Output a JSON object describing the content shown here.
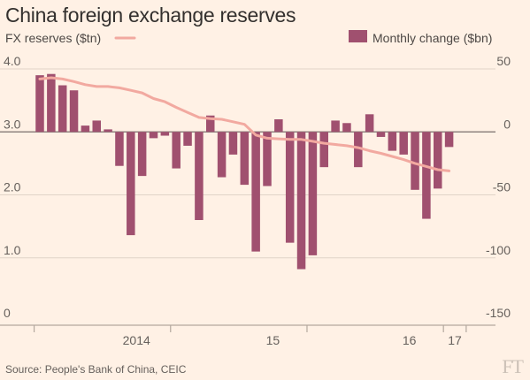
{
  "chart_data": {
    "type": "bar+line",
    "title": "China foreign exchange reserves",
    "source": "Source: People's Bank of China, CEIC",
    "logo": "FT",
    "line_series": {
      "name": "FX reserves ($tn)",
      "color": "#f2a9a0",
      "axis": "left",
      "ylim": [
        0,
        4.0
      ],
      "ticks": [
        "4.0",
        "3.0",
        "2.0",
        "1.0",
        "0"
      ],
      "tick_values": [
        4,
        3,
        2,
        1,
        0
      ]
    },
    "bar_series": {
      "name": "Monthly change ($bn)",
      "color": "#a0506f",
      "axis": "right",
      "ylim": [
        -150,
        50
      ],
      "ticks": [
        "50",
        "0",
        "-50",
        "-100",
        "-150"
      ],
      "tick_values": [
        50,
        0,
        -50,
        -100,
        -150
      ]
    },
    "x_ticks": [
      {
        "label": "2014",
        "month": 8.5
      },
      {
        "label": "15",
        "month": 20.5
      },
      {
        "label": "16",
        "month": 32.5
      },
      {
        "label": "17",
        "month": 36.5
      }
    ],
    "x_boundaries": [
      -0.5,
      11.5,
      23.5,
      35.5
    ],
    "months": [
      "2013-07",
      "2013-08",
      "2013-09",
      "2013-10",
      "2013-11",
      "2013-12",
      "2014-01",
      "2014-02",
      "2014-03",
      "2014-04",
      "2014-05",
      "2014-06",
      "2014-07",
      "2014-08",
      "2014-09",
      "2014-10",
      "2014-11",
      "2014-12",
      "2015-01",
      "2015-02",
      "2015-03",
      "2015-04",
      "2015-05",
      "2015-06",
      "2015-07",
      "2015-08",
      "2015-09",
      "2015-10",
      "2015-11",
      "2015-12",
      "2016-01",
      "2016-02",
      "2016-03",
      "2016-04",
      "2016-05",
      "2016-06",
      "2016-07",
      "2016-08",
      "2016-09",
      "2016-10",
      "2016-11",
      "2016-12",
      "2017-01"
    ],
    "reserves": [
      3.5,
      3.55,
      3.66,
      3.74,
      3.8,
      3.82,
      3.84,
      3.86,
      3.84,
      3.8,
      3.75,
      3.72,
      3.72,
      3.7,
      3.66,
      3.62,
      3.53,
      3.48,
      3.39,
      3.31,
      3.23,
      3.21,
      3.2,
      3.16,
      3.12,
      2.95,
      2.9,
      2.89,
      2.88,
      2.88,
      2.85,
      2.82,
      2.8,
      2.78,
      2.75,
      2.7,
      2.66,
      2.61,
      2.56,
      2.5,
      2.45,
      2.4,
      2.38
    ],
    "changes": [
      45,
      46,
      37,
      33,
      5,
      9,
      2,
      -27,
      -82,
      -35,
      -5,
      -3,
      -29,
      -11,
      -70,
      13,
      -36,
      -18,
      -42,
      -95,
      -43,
      10,
      -88,
      -109,
      -98,
      -28,
      9,
      7,
      -28,
      14,
      -4,
      -15,
      -18,
      -46,
      -69,
      -45,
      -12
    ]
  }
}
